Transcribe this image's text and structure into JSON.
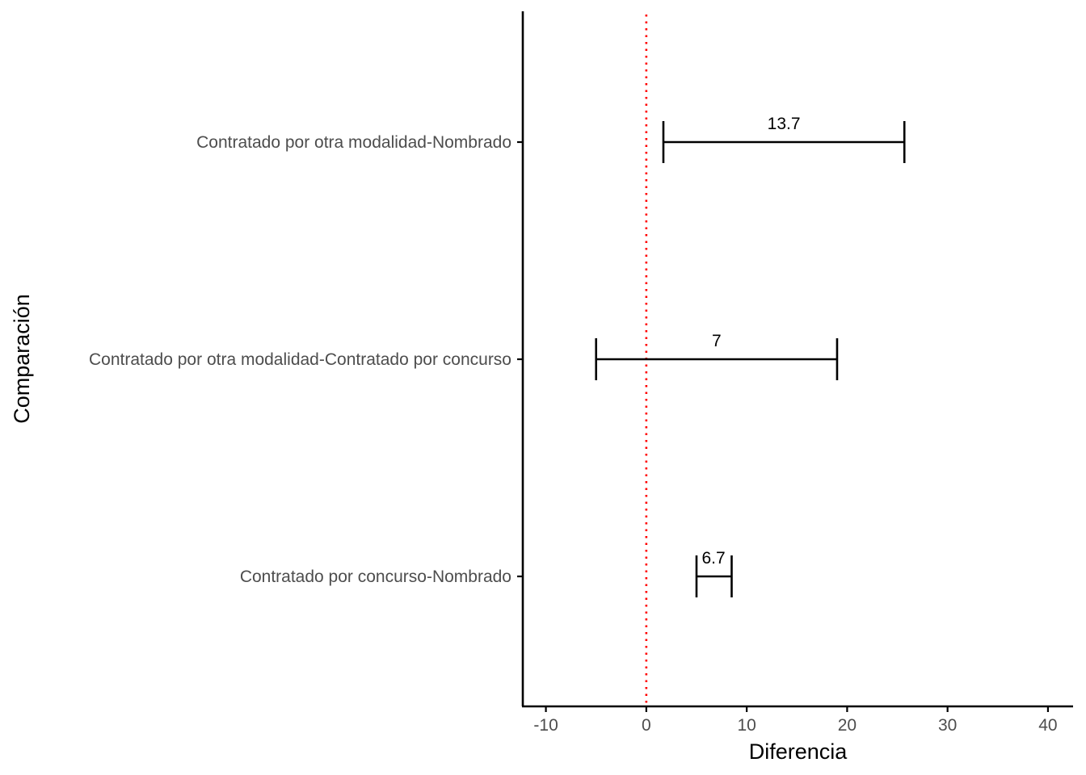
{
  "chart_data": {
    "type": "errorbar",
    "orientation": "horizontal",
    "title": "",
    "xlabel": "Diferencia",
    "ylabel": "Comparación",
    "xlim": [
      -12.3,
      42.5
    ],
    "x_ticks": [
      -10,
      0,
      10,
      20,
      30,
      40
    ],
    "x_tick_labels": [
      "-10",
      "0",
      "10",
      "20",
      "30",
      "40"
    ],
    "categories": [
      "Contratado por otra modalidad-Nombrado",
      "Contratado por otra modalidad-Contratado por concurso",
      "Contratado por concurso-Nombrado"
    ],
    "estimates": [
      13.7,
      7,
      6.7
    ],
    "estimate_labels": [
      "13.7",
      "7",
      "6.7"
    ],
    "lower": [
      1.7,
      -5.0,
      5.0
    ],
    "upper": [
      25.7,
      19.0,
      8.5
    ],
    "reference_line": {
      "x": 0,
      "style": "dotted",
      "color": "#ff0000"
    },
    "grid": false,
    "legend": "none",
    "colors": {
      "bars": "#000000",
      "axis": "#000000",
      "tick_text": "#4d4d4d"
    }
  }
}
